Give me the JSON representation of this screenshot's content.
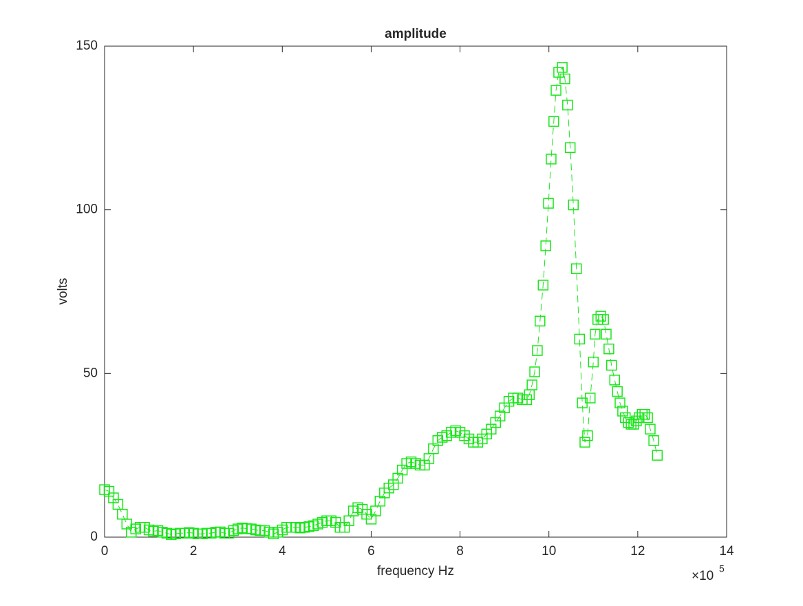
{
  "chart_data": {
    "type": "line",
    "title": "amplitude",
    "x_label": "frequency Hz",
    "y_label": "volts",
    "x_multiplier_base": "×10",
    "x_multiplier_exponent": "5",
    "color": "#19e619",
    "marker": "square",
    "line_style": "dashed",
    "xlim": [
      0,
      14
    ],
    "xticks": [
      0,
      2,
      4,
      6,
      8,
      10,
      12,
      14
    ],
    "ylim": [
      0,
      150
    ],
    "yticks": [
      0,
      50,
      100,
      150
    ],
    "x": [
      0.0,
      0.1,
      0.2,
      0.3,
      0.4,
      0.5,
      0.6,
      0.7,
      0.8,
      0.9,
      1.0,
      1.1,
      1.2,
      1.3,
      1.4,
      1.5,
      1.6,
      1.7,
      1.8,
      1.9,
      2.0,
      2.1,
      2.2,
      2.3,
      2.4,
      2.5,
      2.6,
      2.7,
      2.8,
      2.9,
      3.0,
      3.1,
      3.2,
      3.3,
      3.4,
      3.5,
      3.6,
      3.7,
      3.8,
      3.9,
      4.0,
      4.1,
      4.2,
      4.3,
      4.4,
      4.5,
      4.6,
      4.7,
      4.8,
      4.9,
      5.0,
      5.1,
      5.2,
      5.3,
      5.4,
      5.5,
      5.6,
      5.7,
      5.8,
      5.9,
      6.0,
      6.1,
      6.2,
      6.3,
      6.4,
      6.5,
      6.6,
      6.7,
      6.8,
      6.9,
      7.0,
      7.1,
      7.2,
      7.3,
      7.4,
      7.5,
      7.6,
      7.7,
      7.8,
      7.9,
      8.0,
      8.1,
      8.2,
      8.3,
      8.4,
      8.5,
      8.6,
      8.7,
      8.8,
      8.9,
      9.0,
      9.1,
      9.2,
      9.3,
      9.4,
      9.5,
      9.56,
      9.62,
      9.68,
      9.74,
      9.8,
      9.87,
      9.93,
      9.99,
      10.05,
      10.11,
      10.16,
      10.22,
      10.3,
      10.36,
      10.42,
      10.48,
      10.55,
      10.62,
      10.69,
      10.75,
      10.81,
      10.87,
      10.93,
      11.0,
      11.04,
      11.1,
      11.17,
      11.23,
      11.29,
      11.35,
      11.41,
      11.48,
      11.54,
      11.6,
      11.66,
      11.72,
      11.79,
      11.85,
      11.91,
      11.97,
      12.03,
      12.1,
      12.16,
      12.22,
      12.28,
      12.36,
      12.44
    ],
    "values": [
      14.5,
      14,
      12,
      10,
      7,
      4,
      1.5,
      2.5,
      3,
      3,
      2.2,
      1.8,
      2,
      1.5,
      1.2,
      0.8,
      1,
      1.2,
      1.2,
      1.4,
      1.2,
      1,
      1,
      1.2,
      1.2,
      1.5,
      1.6,
      1.2,
      1.2,
      2,
      2.5,
      2.8,
      2.6,
      2.5,
      2.2,
      2,
      2,
      1.5,
      1,
      1.5,
      2.2,
      3,
      3,
      3,
      2.8,
      3,
      3.2,
      3.5,
      4,
      4.5,
      5,
      5,
      4.5,
      3,
      3,
      5,
      8,
      9,
      8.5,
      7,
      5.5,
      8,
      11,
      13.5,
      15,
      16,
      18,
      20.5,
      22.5,
      23,
      22.5,
      22,
      22,
      24,
      27,
      29.5,
      30.5,
      31,
      32,
      32.5,
      32,
      31,
      30,
      29,
      29,
      30,
      31.5,
      33,
      35,
      37,
      39.5,
      41.5,
      42.5,
      42.5,
      42,
      42,
      43.5,
      46.5,
      50.5,
      57,
      66,
      77,
      89,
      102,
      115.5,
      127,
      136.5,
      142,
      143.5,
      140,
      132,
      119,
      101.5,
      82,
      60.5,
      41,
      29,
      31,
      42.5,
      53.5,
      62,
      66.5,
      67.5,
      66.5,
      62,
      57.5,
      52.5,
      48,
      44.5,
      41,
      38.5,
      36.5,
      35,
      34.5,
      34.5,
      35.5,
      36.5,
      37.5,
      37.5,
      36.5,
      33,
      29.5,
      25
    ]
  }
}
